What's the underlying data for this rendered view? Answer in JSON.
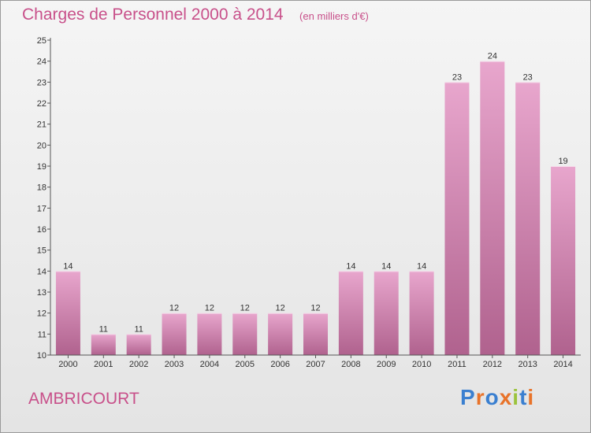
{
  "header": {
    "title": "Charges de Personnel 2000 à 2014",
    "subtitle": "(en milliers d'€)"
  },
  "footer": {
    "commune": "AMBRICOURT",
    "logo_text": "Proxiti"
  },
  "colors": {
    "title": "#c8508a",
    "bar_light": "#e8a6cd",
    "bar_dark": "#b0628e",
    "logo": [
      "#3a7fd0",
      "#e8732a",
      "#3a7fd0",
      "#e8732a",
      "#9bc33c",
      "#3a7fd0",
      "#e8732a"
    ]
  },
  "chart_data": {
    "type": "bar",
    "categories": [
      "2000",
      "2001",
      "2002",
      "2003",
      "2004",
      "2005",
      "2006",
      "2007",
      "2008",
      "2009",
      "2010",
      "2011",
      "2012",
      "2013",
      "2014"
    ],
    "values": [
      14,
      11,
      11,
      12,
      12,
      12,
      12,
      12,
      14,
      14,
      14,
      23,
      24,
      23,
      19
    ],
    "data_labels": [
      "14",
      "11",
      "11",
      "12",
      "12",
      "12",
      "12",
      "12",
      "14",
      "14",
      "14",
      "23",
      "24",
      "23",
      "19"
    ],
    "yticks": [
      "10",
      "11",
      "12",
      "13",
      "14",
      "15",
      "16",
      "17",
      "18",
      "19",
      "20",
      "21",
      "22",
      "23",
      "24",
      "25"
    ],
    "ylim": [
      10,
      25
    ],
    "grid": false,
    "legend": "none"
  }
}
